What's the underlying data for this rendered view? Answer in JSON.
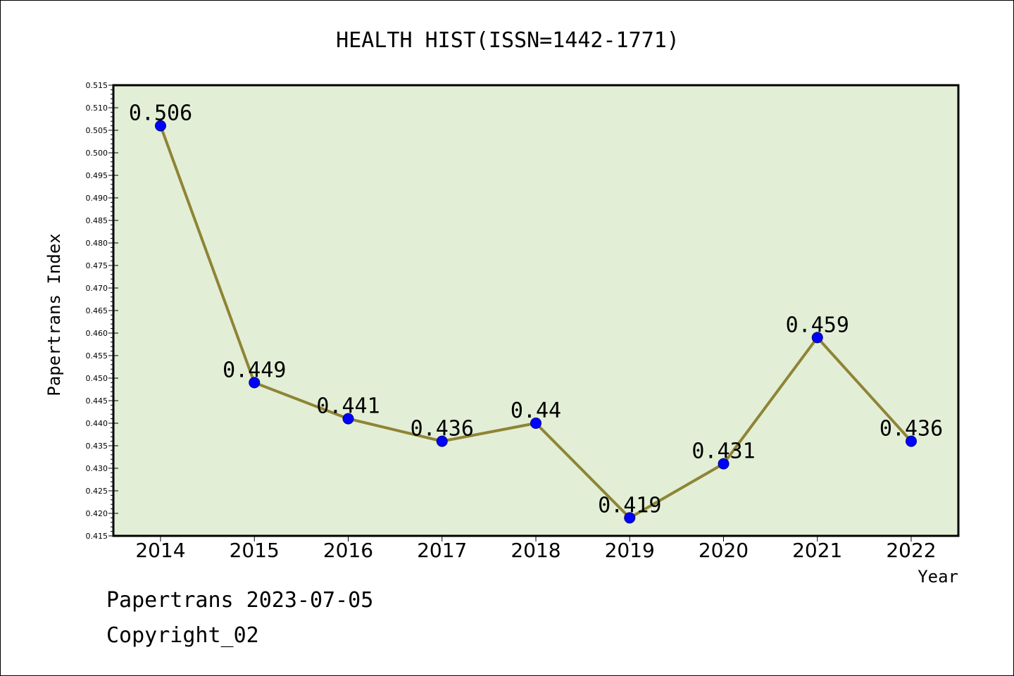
{
  "chart_data": {
    "type": "line",
    "title": "HEALTH HIST(ISSN=1442-1771)",
    "xlabel": "Year",
    "ylabel": "Papertrans Index",
    "x": [
      "2014",
      "2015",
      "2016",
      "2017",
      "2018",
      "2019",
      "2020",
      "2021",
      "2022"
    ],
    "values": [
      0.506,
      0.449,
      0.441,
      0.436,
      0.44,
      0.419,
      0.431,
      0.459,
      0.436
    ],
    "data_labels": [
      "0.506",
      "0.449",
      "0.441",
      "0.436",
      "0.44",
      "0.419",
      "0.431",
      "0.459",
      "0.436"
    ],
    "ylim": [
      0.415,
      0.515
    ],
    "ytick_step": 0.005,
    "ytick_labels": [
      "0.415",
      "0.420",
      "0.425",
      "0.430",
      "0.435",
      "0.440",
      "0.445",
      "0.450",
      "0.455",
      "0.460",
      "0.465",
      "0.470",
      "0.475",
      "0.480",
      "0.485",
      "0.490",
      "0.495",
      "0.500",
      "0.505",
      "0.510",
      "0.515"
    ],
    "grid": false,
    "legend": "none",
    "colors": {
      "plot_background": "#e2efd6",
      "line": "#8f8436",
      "marker": "#0000ff",
      "marker_edge": "#000080"
    }
  },
  "footer": {
    "date_line": "Papertrans 2023-07-05",
    "copyright": "Copyright_02"
  }
}
